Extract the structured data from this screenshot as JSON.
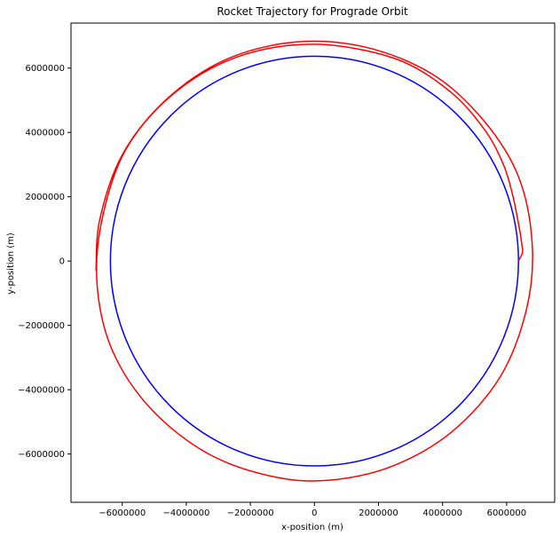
{
  "chart_data": {
    "type": "line",
    "title": "Rocket Trajectory for Prograde Orbit",
    "xlabel": "x-position (m)",
    "ylabel": "y-position (m)",
    "xlim": [
      -7600000,
      7500000
    ],
    "ylim": [
      -7500000,
      7400000
    ],
    "xticks": [
      -6000000,
      -4000000,
      -2000000,
      0,
      2000000,
      4000000,
      6000000
    ],
    "xtick_labels": [
      "−6000000",
      "−4000000",
      "−2000000",
      "0",
      "2000000",
      "4000000",
      "6000000"
    ],
    "yticks": [
      -6000000,
      -4000000,
      -2000000,
      0,
      2000000,
      4000000,
      6000000
    ],
    "ytick_labels": [
      "−6000000",
      "−4000000",
      "−2000000",
      "0",
      "2000000",
      "4000000",
      "6000000"
    ],
    "grid": false,
    "series": [
      {
        "color": "#0000ff",
        "shape": "circle",
        "radius": 6370000,
        "center": [
          0,
          0
        ]
      },
      {
        "color": "#ff0000",
        "shape": "spiral",
        "start": [
          6370000,
          0
        ],
        "end_radius": 6820000,
        "points": [
          [
            6370000,
            0
          ],
          [
            6420000,
            100000
          ],
          [
            6480000,
            220000
          ],
          [
            6500000,
            340000
          ],
          [
            6480000,
            480000
          ],
          [
            6450000,
            700000
          ],
          [
            6400000,
            1000000
          ],
          [
            6200000,
            2000000
          ],
          [
            5900000,
            3000000
          ],
          [
            5300000,
            4100000
          ],
          [
            4200000,
            5300000
          ],
          [
            2500000,
            6300000
          ],
          [
            0,
            6740000
          ],
          [
            -2400000,
            6350000
          ],
          [
            -4400000,
            5200000
          ],
          [
            -5900000,
            3450000
          ],
          [
            -6650000,
            1200000
          ],
          [
            -6780000,
            -800000
          ],
          [
            -6300000,
            -2800000
          ],
          [
            -5100000,
            -4600000
          ],
          [
            -3300000,
            -6000000
          ],
          [
            -1200000,
            -6720000
          ],
          [
            600000,
            -6800000
          ],
          [
            2500000,
            -6350000
          ],
          [
            4300000,
            -5300000
          ],
          [
            5800000,
            -3600000
          ],
          [
            6620000,
            -1500000
          ],
          [
            6800000,
            500000
          ],
          [
            6380000,
            2600000
          ],
          [
            5300000,
            4350000
          ],
          [
            3700000,
            5800000
          ],
          [
            1600000,
            6650000
          ],
          [
            -600000,
            6810000
          ],
          [
            -2800000,
            6250000
          ],
          [
            -4650000,
            5000000
          ],
          [
            -6000000,
            3300000
          ],
          [
            -6700000,
            1300000
          ],
          [
            -6820000,
            -300000
          ]
        ]
      }
    ]
  }
}
